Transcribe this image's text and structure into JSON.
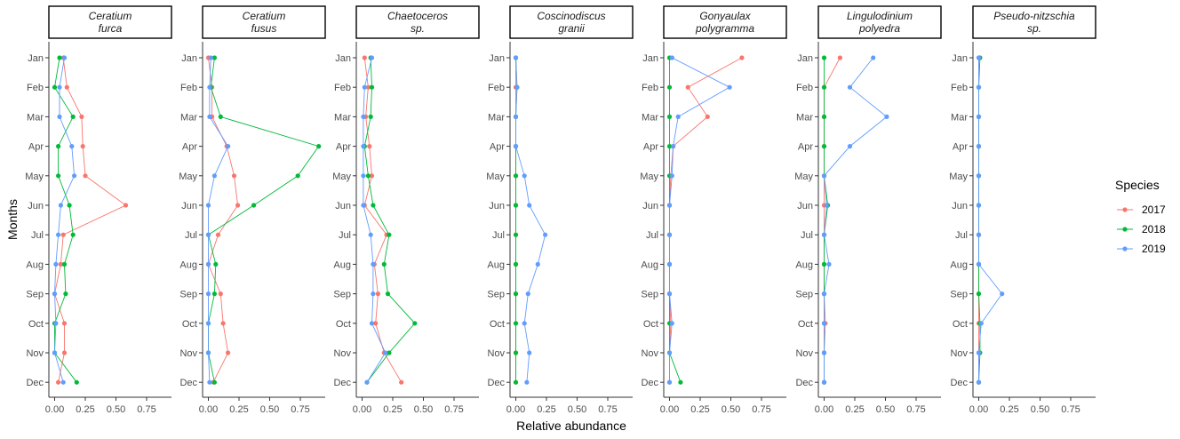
{
  "chart_data": {
    "type": "line",
    "orientation": "horizontal",
    "xlabel": "Relative abundance",
    "ylabel": "Months",
    "xlim": [
      -0.05,
      0.95
    ],
    "xticks": [
      0.0,
      0.25,
      0.5,
      0.75
    ],
    "xtick_labels": [
      "0.00",
      "0.25",
      "0.50",
      "0.75"
    ],
    "categories": [
      "Jan",
      "Feb",
      "Mar",
      "Apr",
      "May",
      "Jun",
      "Jul",
      "Aug",
      "Sep",
      "Oct",
      "Nov",
      "Dec"
    ],
    "legend": {
      "title": "Species",
      "position": "right",
      "entries": [
        "2017",
        "2018",
        "2019"
      ]
    },
    "colors": {
      "2017": "#F8766D",
      "2018": "#00BA38",
      "2019": "#619CFF"
    },
    "panels": [
      {
        "title_line1": "Ceratium",
        "title_line2": "furca",
        "series": [
          {
            "name": "2017",
            "values": [
              0.07,
              0.1,
              0.22,
              0.23,
              0.25,
              0.58,
              0.07,
              0.05,
              0.0,
              0.08,
              0.08,
              0.03
            ]
          },
          {
            "name": "2018",
            "values": [
              0.04,
              0.0,
              0.15,
              0.03,
              0.03,
              0.12,
              0.15,
              0.08,
              0.09,
              0.0,
              0.0,
              0.18
            ]
          },
          {
            "name": "2019",
            "values": [
              0.08,
              0.04,
              0.04,
              0.14,
              0.16,
              0.05,
              0.03,
              0.01,
              0.0,
              0.01,
              0.0,
              0.07
            ]
          }
        ]
      },
      {
        "title_line1": "Ceratium",
        "title_line2": "fusus",
        "series": [
          {
            "name": "2017",
            "values": [
              0.0,
              0.03,
              0.03,
              0.15,
              0.21,
              0.24,
              0.08,
              0.0,
              0.1,
              0.12,
              0.16,
              0.04
            ]
          },
          {
            "name": "2018",
            "values": [
              0.05,
              0.02,
              0.1,
              0.9,
              0.73,
              0.37,
              0.0,
              0.06,
              0.05,
              0.0,
              0.0,
              0.05
            ]
          },
          {
            "name": "2019",
            "values": [
              0.02,
              0.01,
              0.01,
              0.16,
              0.05,
              0.0,
              0.0,
              0.0,
              0.0,
              0.0,
              0.0,
              0.01
            ]
          }
        ]
      },
      {
        "title_line1": "Chaetoceros",
        "title_line2": "sp.",
        "series": [
          {
            "name": "2017",
            "values": [
              0.02,
              0.05,
              0.03,
              0.06,
              0.08,
              0.02,
              0.2,
              0.1,
              0.13,
              0.11,
              0.18,
              0.32
            ]
          },
          {
            "name": "2018",
            "values": [
              0.07,
              0.08,
              0.07,
              0.02,
              0.05,
              0.09,
              0.22,
              0.18,
              0.21,
              0.43,
              0.22,
              0.04
            ]
          },
          {
            "name": "2019",
            "values": [
              0.08,
              0.02,
              0.01,
              0.01,
              0.01,
              0.01,
              0.07,
              0.09,
              0.09,
              0.08,
              0.19,
              0.04
            ]
          }
        ]
      },
      {
        "title_line1": "Coscinodiscus",
        "title_line2": "granii",
        "series": [
          {
            "name": "2017",
            "values": [
              0.0,
              0.0,
              0.0,
              0.0,
              0.0,
              0.0,
              0.0,
              0.0,
              0.0,
              0.0,
              0.0,
              0.0
            ]
          },
          {
            "name": "2018",
            "values": [
              0.0,
              0.01,
              0.0,
              0.0,
              0.0,
              0.0,
              0.0,
              0.0,
              0.0,
              0.0,
              0.0,
              0.0
            ]
          },
          {
            "name": "2019",
            "values": [
              0.0,
              0.01,
              0.0,
              0.0,
              0.07,
              0.11,
              0.24,
              0.18,
              0.1,
              0.07,
              0.11,
              0.09
            ]
          }
        ]
      },
      {
        "title_line1": "Gonyaulax",
        "title_line2": "polygramma",
        "series": [
          {
            "name": "2017",
            "values": [
              0.59,
              0.15,
              0.31,
              0.03,
              0.01,
              0.0,
              0.0,
              0.0,
              0.0,
              0.01,
              0.0,
              0.0
            ]
          },
          {
            "name": "2018",
            "values": [
              0.0,
              0.0,
              0.0,
              0.0,
              0.0,
              0.0,
              0.0,
              0.0,
              0.0,
              0.0,
              0.0,
              0.09
            ]
          },
          {
            "name": "2019",
            "values": [
              0.02,
              0.49,
              0.07,
              0.03,
              0.02,
              0.0,
              0.0,
              0.0,
              0.0,
              0.02,
              0.0,
              0.0
            ]
          }
        ]
      },
      {
        "title_line1": "Lingulodinium",
        "title_line2": "polyedra",
        "series": [
          {
            "name": "2017",
            "values": [
              0.13,
              0.0,
              0.0,
              0.0,
              0.0,
              0.0,
              0.0,
              0.0,
              0.0,
              0.01,
              0.0,
              0.0
            ]
          },
          {
            "name": "2018",
            "values": [
              0.0,
              0.0,
              0.0,
              0.0,
              0.0,
              0.03,
              0.0,
              0.0,
              0.0,
              0.0,
              0.0,
              0.0
            ]
          },
          {
            "name": "2019",
            "values": [
              0.4,
              0.21,
              0.51,
              0.21,
              0.0,
              0.02,
              0.0,
              0.04,
              0.0,
              0.0,
              0.0,
              0.0
            ]
          }
        ]
      },
      {
        "title_line1": "Pseudo-nitzschia",
        "title_line2": "sp.",
        "series": [
          {
            "name": "2017",
            "values": [
              0.0,
              0.0,
              0.0,
              0.0,
              0.0,
              0.0,
              0.0,
              0.0,
              0.0,
              0.0,
              0.0,
              0.0
            ]
          },
          {
            "name": "2018",
            "values": [
              0.01,
              0.0,
              0.0,
              0.0,
              0.0,
              0.0,
              0.0,
              0.0,
              0.0,
              0.01,
              0.01,
              0.0
            ]
          },
          {
            "name": "2019",
            "values": [
              0.0,
              0.0,
              0.0,
              0.0,
              0.0,
              0.0,
              0.0,
              0.0,
              0.19,
              0.02,
              0.0,
              0.0
            ]
          }
        ]
      }
    ]
  }
}
